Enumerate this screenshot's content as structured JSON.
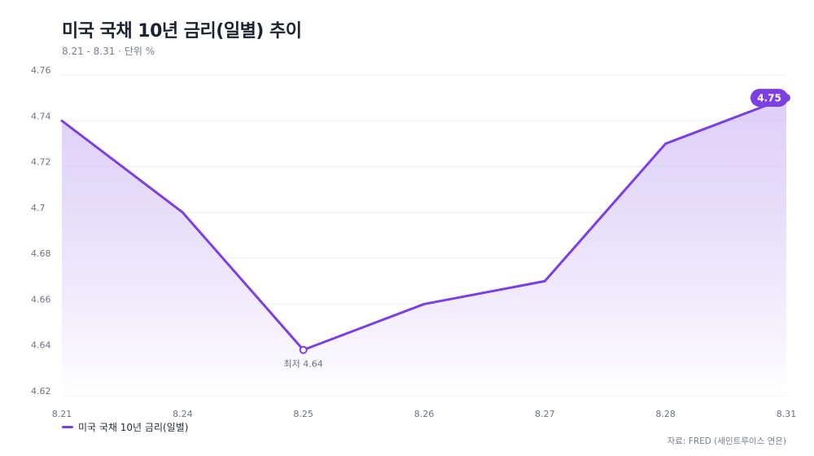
{
  "header": {
    "title": "미국 국채 10년 금리(일별) 추이",
    "subtitle": "8.21 - 8.31 · 단위 %"
  },
  "legend": {
    "label": "미국 국채 10년 금리(일별)"
  },
  "footer": {
    "source": "자료: FRED (세인트루이스 연은)"
  },
  "colors": {
    "line": "#7b3fe4",
    "area_top": "#cbb7f5",
    "grid": "#ebedf2",
    "badge_text": "#ffffff"
  },
  "chart_data": {
    "type": "line",
    "categories": [
      "8.21",
      "8.24",
      "8.25",
      "8.26",
      "8.27",
      "8.28",
      "8.31"
    ],
    "series": [
      {
        "name": "미국 국채 10년 금리(일별)",
        "values": [
          4.74,
          4.7,
          4.64,
          4.66,
          4.67,
          4.73,
          4.75
        ]
      }
    ],
    "ylim": [
      4.62,
      4.76
    ],
    "yticks": [
      "4.62",
      "4.64",
      "4.66",
      "4.68",
      "4.7",
      "4.72",
      "4.74",
      "4.76"
    ],
    "grid": true,
    "area_fill": true,
    "annotations": {
      "min_label": "최저 4.64",
      "min_index": 2,
      "last_value_label": "4.75",
      "last_index": 6
    },
    "legend_position": "bottom-left"
  }
}
